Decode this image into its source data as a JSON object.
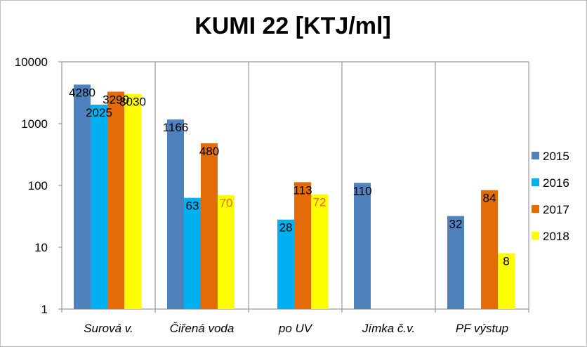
{
  "chart_data": {
    "type": "bar",
    "title": "KUMI 22 [KTJ/ml]",
    "scale": "log",
    "ylim": [
      1,
      10000
    ],
    "yticks": [
      "1",
      "10",
      "100",
      "1000",
      "10000"
    ],
    "categories": [
      "Surová v.",
      "Čiřená voda",
      "po UV",
      "Jímka č.v.",
      "PF výstup"
    ],
    "series": [
      {
        "name": "2015",
        "color": "#4f81bd",
        "values": [
          4280,
          1166,
          null,
          110,
          32
        ]
      },
      {
        "name": "2016",
        "color": "#00b0f0",
        "values": [
          2025,
          63,
          28,
          null,
          null
        ]
      },
      {
        "name": "2017",
        "color": "#e36c09",
        "values": [
          3290,
          480,
          113,
          null,
          84
        ]
      },
      {
        "name": "2018",
        "color": "#ffff00",
        "values": [
          3030,
          70,
          72,
          null,
          8
        ]
      }
    ],
    "labels": [
      [
        "4280",
        "1166",
        "",
        "110",
        "32"
      ],
      [
        "2025",
        "63",
        "28",
        "",
        ""
      ],
      [
        "3290",
        "480",
        "113",
        "",
        "84"
      ],
      [
        "3030",
        "70",
        "72",
        "",
        "8"
      ]
    ],
    "label_colors": [
      [
        "#000000",
        "#000000",
        "",
        "#000000",
        "#000000"
      ],
      [
        "#000000",
        "#000000",
        "#000000",
        "",
        ""
      ],
      [
        "#000000",
        "#000000",
        "#000000",
        "",
        "#000000"
      ],
      [
        "#000000",
        "#e36c09",
        "#e36c09",
        "",
        "#000000"
      ]
    ],
    "grid": "vertical category separators",
    "legend": "right"
  }
}
